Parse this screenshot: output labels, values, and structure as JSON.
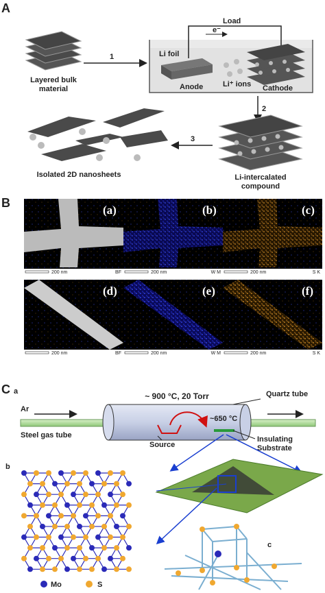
{
  "panel_a": {
    "label": "A",
    "load": "Load",
    "electron": "e⁻",
    "step1": "1",
    "step2": "2",
    "step3": "3",
    "li_foil": "Li foil",
    "anode": "Anode",
    "ions": "Li⁺ ions",
    "cathode": "Cathode",
    "bulk": "Layered bulk",
    "bulk2": "material",
    "nanosheets": "Isolated 2D nanosheets",
    "intercalated": "Li-intercalated",
    "intercalated2": "compound"
  },
  "panel_b": {
    "label": "B",
    "images": [
      {
        "tag": "(a)",
        "scale": "200 nm",
        "signal": "BF"
      },
      {
        "tag": "(b)",
        "scale": "200 nm",
        "signal": "W M"
      },
      {
        "tag": "(c)",
        "scale": "200 nm",
        "signal": "S K"
      },
      {
        "tag": "(d)",
        "scale": "200 nm",
        "signal": "BF"
      },
      {
        "tag": "(e)",
        "scale": "200 nm",
        "signal": "W M"
      },
      {
        "tag": "(f)",
        "scale": "200 nm",
        "signal": "S K"
      }
    ]
  },
  "panel_c": {
    "label": "C",
    "sub_a": "a",
    "conditions": "~ 900 °C, 20 Torr",
    "quartz": "Quartz tube",
    "ar": "Ar",
    "steel": "Steel gas tube",
    "temp2": "~650 °C",
    "source": "Source",
    "substrate": "Insulating",
    "substrate2": "Substrate",
    "sub_b": "b",
    "sub_c": "c",
    "mo": "Mo",
    "s": "S"
  }
}
